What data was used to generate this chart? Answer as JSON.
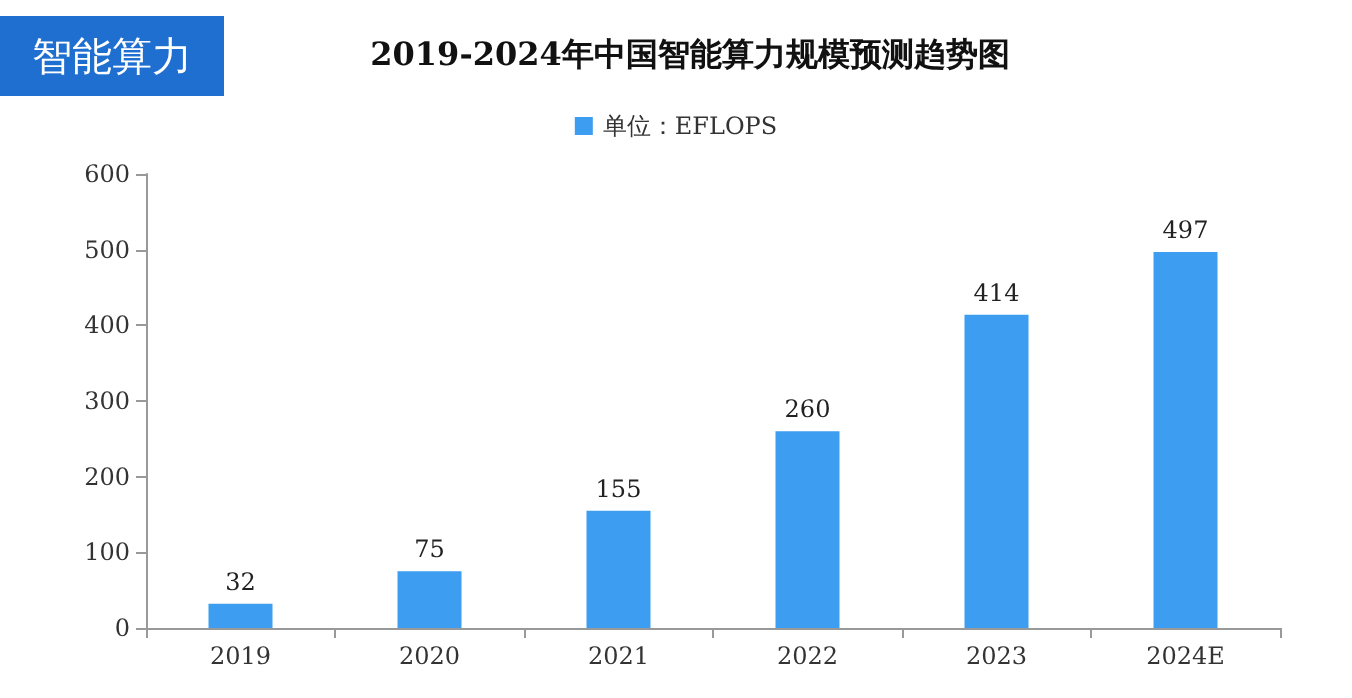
{
  "chart_data": {
    "type": "bar",
    "title": "2019-2024年中国智能算力规模预测趋势图",
    "annotations": [
      "智能算力"
    ],
    "categories": [
      "2019",
      "2020",
      "2021",
      "2022",
      "2023",
      "2024E"
    ],
    "series": [
      {
        "name": "单位：EFLOPS",
        "color": "#3d9df0",
        "values": [
          32,
          75,
          155,
          260,
          414,
          497
        ]
      }
    ],
    "ylim": [
      0,
      600
    ],
    "yticks": [
      0,
      100,
      200,
      300,
      400,
      500,
      600
    ],
    "data_labels": true,
    "legend": "top",
    "grid": false
  }
}
